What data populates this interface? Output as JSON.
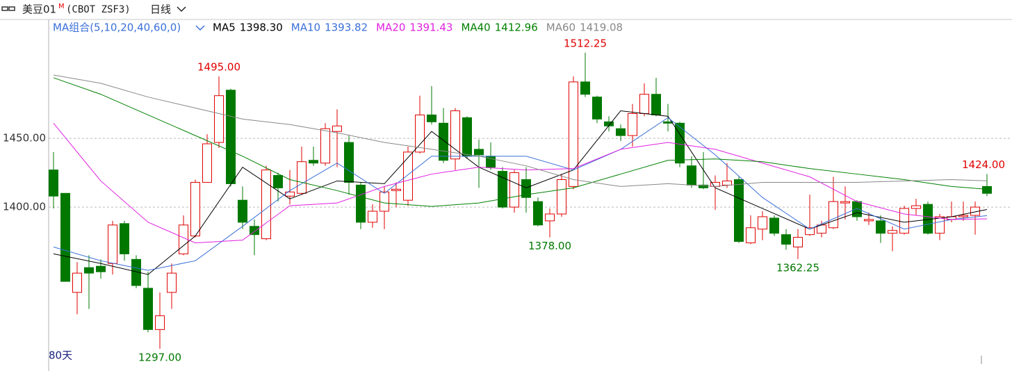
{
  "chart_data": {
    "type": "candlestick",
    "title": "美豆01",
    "title_mark": "M",
    "symbol": "(CBOT ZSF3)",
    "period": "日线",
    "ma_group": "MA组合(5,10,20,40,60,0)",
    "days_label": "80天",
    "up_color": "#e00000",
    "down_color": "#007800",
    "open": [
      1427,
      1410,
      1338,
      1356,
      1357,
      1359,
      1388,
      1362,
      1341,
      1311,
      1338,
      1366,
      1379,
      1418,
      1447,
      1485,
      1405,
      1386,
      1377,
      1423,
      1408,
      1410,
      1434,
      1432,
      1455,
      1447,
      1416,
      1389,
      1397,
      1412,
      1405,
      1440,
      1467,
      1461,
      1435,
      1465,
      1442,
      1437,
      1426,
      1400,
      1420,
      1404,
      1390,
      1395,
      1415,
      1491,
      1480,
      1462,
      1457,
      1452,
      1468,
      1482,
      1462,
      1461,
      1430,
      1416,
      1415,
      1416,
      1420,
      1374,
      1384,
      1392,
      1380,
      1371,
      1380,
      1381,
      1385,
      1403,
      1404,
      1390,
      1390,
      1381,
      1381,
      1399,
      1402,
      1381,
      1391,
      1393,
      1394,
      1415
    ],
    "high": [
      1440,
      1410,
      1360,
      1365,
      1362,
      1390,
      1390,
      1365,
      1353,
      1338,
      1359,
      1394,
      1420,
      1453,
      1495,
      1486,
      1415,
      1391,
      1430,
      1425,
      1427,
      1444,
      1444,
      1461,
      1471,
      1452,
      1418,
      1402,
      1415,
      1418,
      1444,
      1481,
      1488,
      1472,
      1472,
      1466,
      1449,
      1447,
      1429,
      1427,
      1429,
      1407,
      1399,
      1424,
      1495,
      1512.25,
      1481,
      1466,
      1460,
      1475,
      1490,
      1494,
      1475,
      1462,
      1437,
      1440,
      1423,
      1432,
      1422,
      1394,
      1397,
      1394,
      1384,
      1384,
      1409,
      1390,
      1422,
      1415,
      1405,
      1396,
      1394,
      1386,
      1401,
      1406,
      1404,
      1395,
      1404,
      1404,
      1404,
      1424
    ],
    "low": [
      1399,
      1346,
      1322,
      1326,
      1348,
      1351,
      1361,
      1341,
      1309,
      1297,
      1326,
      1365,
      1378,
      1418,
      1443,
      1415,
      1384,
      1365,
      1376,
      1404,
      1402,
      1409,
      1430,
      1430,
      1429,
      1409,
      1384,
      1385,
      1384,
      1400,
      1401,
      1439,
      1460,
      1432,
      1427,
      1435,
      1414,
      1427,
      1399,
      1396,
      1396,
      1386,
      1378,
      1393,
      1413,
      1480,
      1461,
      1455,
      1448,
      1444,
      1466,
      1466,
      1455,
      1429,
      1414,
      1413,
      1398,
      1414,
      1374,
      1373,
      1376,
      1379,
      1369,
      1362.25,
      1379,
      1378,
      1384,
      1391,
      1390,
      1387,
      1374,
      1368,
      1380,
      1394,
      1380,
      1376,
      1389,
      1390,
      1380,
      1408
    ],
    "close": [
      1408,
      1346,
      1352,
      1352,
      1353,
      1387,
      1366,
      1343,
      1311,
      1321,
      1352,
      1387,
      1418,
      1446,
      1481,
      1417,
      1389,
      1380,
      1427,
      1414,
      1411,
      1433,
      1432,
      1457,
      1459,
      1418,
      1389,
      1397,
      1411,
      1413,
      1440,
      1467,
      1462,
      1434,
      1470,
      1437,
      1438,
      1429,
      1400,
      1425,
      1407,
      1387,
      1395,
      1420,
      1491,
      1482,
      1464,
      1459,
      1452,
      1468,
      1482,
      1467,
      1461,
      1432,
      1416,
      1414,
      1418,
      1419,
      1375,
      1385,
      1393,
      1381,
      1373,
      1378,
      1385,
      1387,
      1404,
      1404,
      1393,
      1391,
      1381,
      1383,
      1399,
      1401,
      1381,
      1393,
      1393,
      1394,
      1400,
      1410
    ],
    "ylim": [
      1285.4,
      1536.4
    ],
    "yticks": [
      {
        "value": 1400,
        "label": "1400.00"
      },
      {
        "value": 1450,
        "label": "1450.00"
      }
    ],
    "grid": true,
    "ma_x": [
      0,
      4,
      8,
      12,
      16,
      20,
      24,
      28,
      32,
      36,
      40,
      44,
      48,
      52,
      56,
      60,
      64,
      68,
      72,
      76,
      79
    ],
    "series": [
      {
        "name": "MA5",
        "color": "#000000",
        "values": [
          1366,
          1359,
          1351,
          1379,
          1429,
          1406,
          1419,
          1417,
          1455,
          1429,
          1414,
          1427,
          1470,
          1466,
          1414,
          1399,
          1384,
          1396,
          1389,
          1393,
          1398.3
        ],
        "value_labels": [
          null,
          null,
          null,
          null,
          null,
          null,
          null,
          null,
          null,
          null,
          null,
          null,
          null,
          null,
          null,
          null,
          null,
          null,
          null,
          null,
          "1398.30"
        ]
      },
      {
        "name": "MA10",
        "color": "#3a6fd8",
        "values": [
          1371,
          1361,
          1354,
          1361,
          1386,
          1412,
          1432,
          1410,
          1437,
          1437,
          1437,
          1427,
          1442,
          1465,
          1438,
          1407,
          1384,
          1399,
          1384,
          1391,
          1393.82
        ],
        "value_labels": [
          null,
          null,
          null,
          null,
          null,
          null,
          null,
          null,
          null,
          null,
          null,
          null,
          null,
          null,
          null,
          null,
          null,
          null,
          null,
          null,
          "1393.82"
        ]
      },
      {
        "name": "MA20",
        "color": "#e020e0",
        "values": [
          1461,
          1419,
          1389,
          1374,
          1376,
          1401,
          1403,
          1415,
          1424,
          1429,
          1427,
          1428,
          1442,
          1447,
          1442,
          1432,
          1422,
          1404,
          1395,
          1391,
          1391.43
        ],
        "value_labels": [
          null,
          null,
          null,
          null,
          null,
          null,
          null,
          null,
          null,
          null,
          null,
          null,
          null,
          null,
          null,
          null,
          null,
          null,
          null,
          null,
          "1391.43"
        ]
      },
      {
        "name": "MA40",
        "color": "#008000",
        "values": [
          1494,
          1482,
          1467,
          1452,
          1437,
          1420,
          1412,
          1403,
          1400.5,
          1403,
          1409,
          1414,
          1424,
          1434,
          1435,
          1433,
          1428,
          1424,
          1420,
          1415,
          1412.96
        ],
        "value_labels": [
          null,
          null,
          null,
          null,
          null,
          null,
          null,
          null,
          null,
          null,
          null,
          null,
          null,
          null,
          null,
          null,
          null,
          null,
          null,
          null,
          "1412.96"
        ]
      },
      {
        "name": "MA60",
        "color": "#888888",
        "values": [
          1496,
          1490,
          1480,
          1472,
          1464,
          1460,
          1454,
          1447,
          1442,
          1437,
          1430,
          1420,
          1415,
          1417,
          1415,
          1418,
          1418,
          1418,
          1419,
          1420,
          1419.08
        ],
        "value_labels": [
          null,
          null,
          null,
          null,
          null,
          null,
          null,
          null,
          null,
          null,
          null,
          null,
          null,
          null,
          null,
          null,
          null,
          null,
          null,
          null,
          "1419.08"
        ]
      }
    ],
    "annotations": [
      {
        "text": "1495.00",
        "x": 14,
        "value": 1495,
        "kind": "high"
      },
      {
        "text": "1512.25",
        "x": 45,
        "value": 1512.25,
        "kind": "high"
      },
      {
        "text": "1424.00",
        "x": 79,
        "value": 1424,
        "kind": "high"
      },
      {
        "text": "1297.00",
        "x": 9,
        "value": 1297,
        "kind": "low"
      },
      {
        "text": "1378.00",
        "x": 42,
        "value": 1378,
        "kind": "low"
      },
      {
        "text": "1362.25",
        "x": 63,
        "value": 1362.25,
        "kind": "low"
      }
    ]
  }
}
